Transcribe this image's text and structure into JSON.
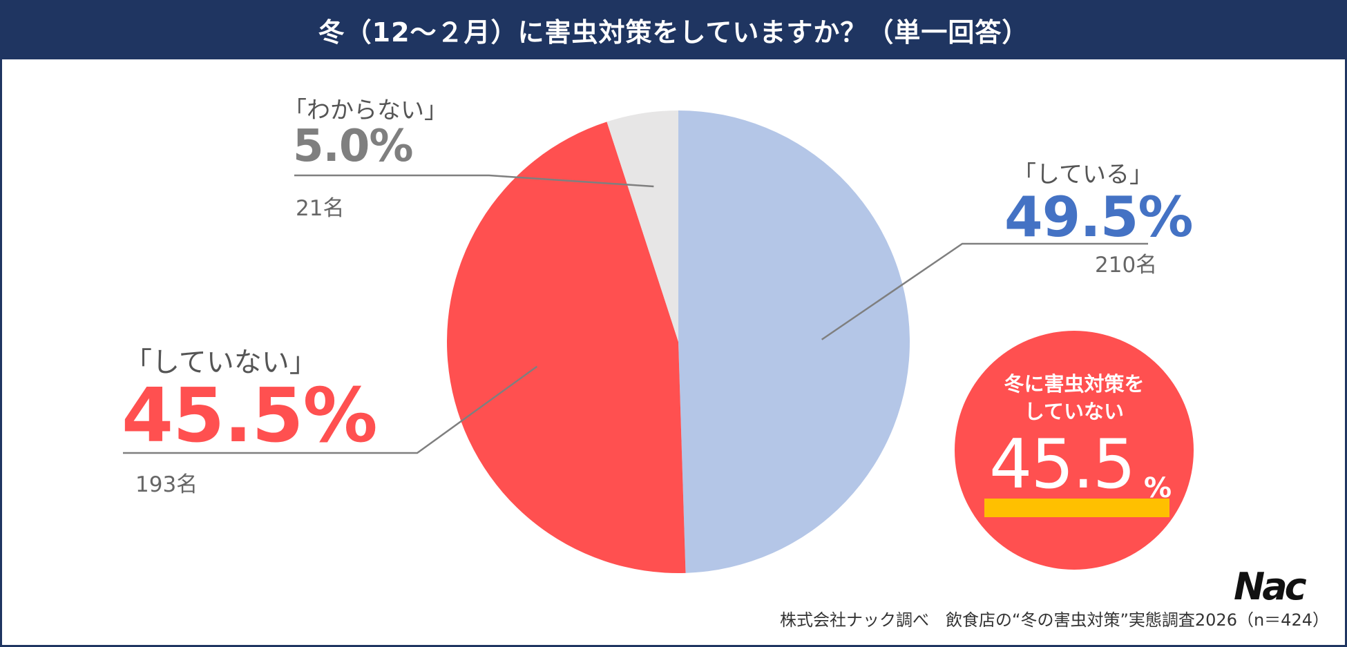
{
  "title": "冬（12～２月）に害虫対策をしていますか？（単一回答）",
  "chart_data": {
    "type": "pie",
    "title": "冬（12～２月）に害虫対策をしていますか？（単一回答）",
    "slices": [
      {
        "label": "「している」",
        "percent": 49.5,
        "percent_label": "49.5%",
        "count_label": "210名",
        "color": "#b4c6e7",
        "label_color": "#4472c4"
      },
      {
        "label": "「していない」",
        "percent": 45.5,
        "percent_label": "45.5%",
        "count_label": "193名",
        "color": "#ff5050",
        "label_color": "#ff5050"
      },
      {
        "label": "「わからない」",
        "percent": 5.0,
        "percent_label": "5.0%",
        "count_label": "21名",
        "color": "#e7e6e6",
        "label_color": "#7f7f7f"
      }
    ]
  },
  "badge": {
    "line1": "冬に害虫対策を",
    "line2": "していない",
    "value": "45.5",
    "unit": "%",
    "color": "#ff5050",
    "underline_color": "#ffc000"
  },
  "footnote": "株式会社ナック調べ　飲食店の“冬の害虫対策”実態調査2026（n＝424）",
  "logo_text": "Nac"
}
